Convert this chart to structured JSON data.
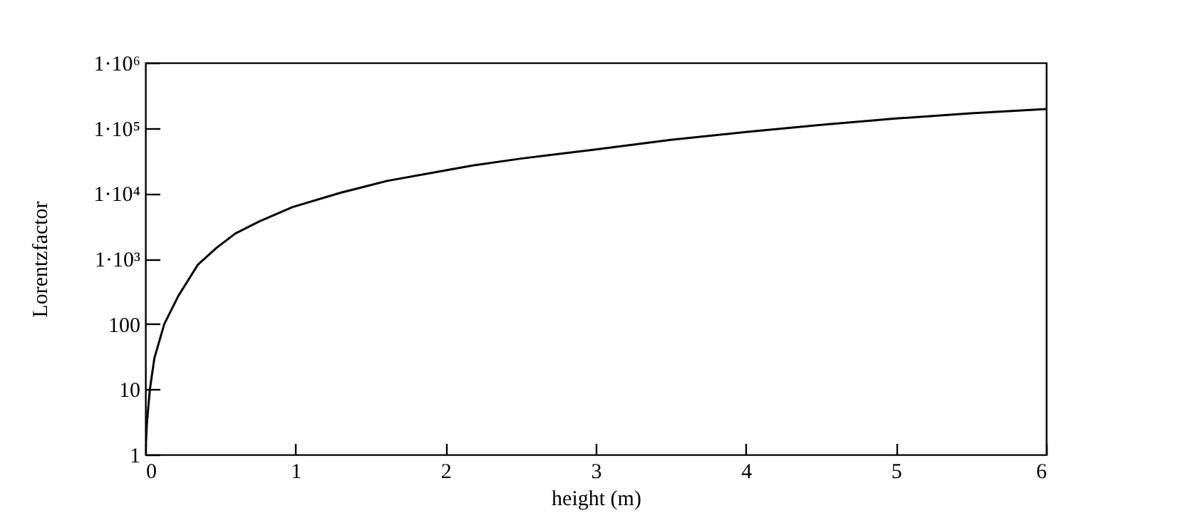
{
  "chart_data": {
    "type": "line",
    "xlabel": "height (m)",
    "ylabel": "Lorentzfactor",
    "log": "y",
    "grid": false,
    "marker": "none",
    "x": [
      0,
      0.01,
      0.03,
      0.06,
      0.126,
      0.22,
      0.35,
      0.475,
      0.6,
      0.76,
      0.98,
      1.3,
      1.61,
      1.93,
      2.18,
      2.5,
      3.0,
      3.5,
      4.0,
      4.5,
      5.0,
      5.5,
      6.0
    ],
    "series": [
      {
        "color": "#000000",
        "values": [
          1,
          3,
          10,
          30,
          100,
          270,
          810,
          1470,
          2430,
          3720,
          6150,
          10200,
          15500,
          21000,
          26700,
          34000,
          47000,
          66000,
          87000,
          112000,
          140000,
          168000,
          196000
        ]
      }
    ],
    "xlim": [
      0,
      6
    ],
    "xticks": [
      0,
      1,
      2,
      3,
      4,
      5,
      6
    ],
    "ylim": [
      1,
      1000000
    ],
    "yticks": [
      1,
      10,
      100,
      {
        "value": 1000,
        "label": "1·10³"
      },
      {
        "value": 10000,
        "label": "1·10⁴"
      },
      {
        "value": 100000,
        "label": "1·10⁵"
      },
      {
        "value": 1000000,
        "label": "1·10⁶"
      }
    ]
  }
}
